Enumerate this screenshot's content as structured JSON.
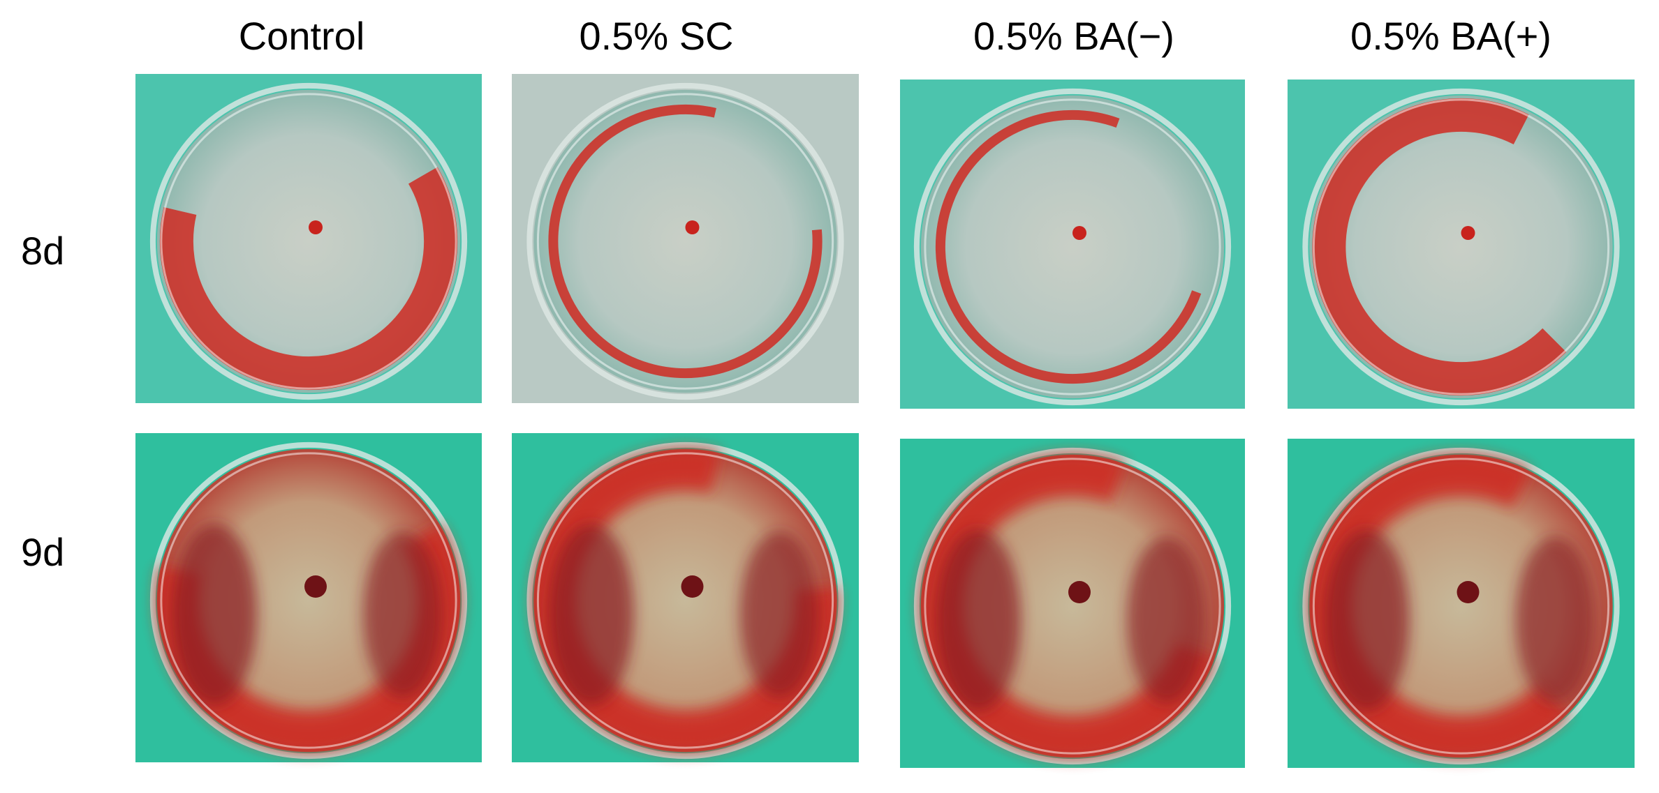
{
  "columns": [
    "Control",
    "0.5% SC",
    "0.5% BA(−)",
    "0.5% BA(+)"
  ],
  "rows": [
    "8d",
    "9d"
  ]
}
